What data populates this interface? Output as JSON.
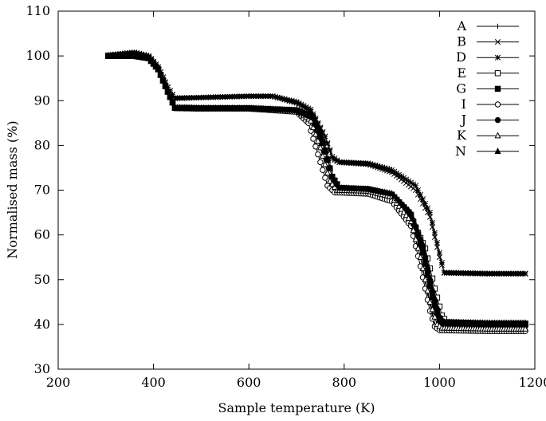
{
  "chart_data": {
    "type": "line",
    "title": "",
    "xlabel": "Sample temperature (K)",
    "ylabel": "Normalised mass (%)",
    "xlim": [
      200,
      1200
    ],
    "ylim": [
      30,
      110
    ],
    "xticks": [
      200,
      400,
      600,
      800,
      1000,
      1200
    ],
    "yticks": [
      30,
      40,
      50,
      60,
      70,
      80,
      90,
      100,
      110
    ],
    "grid": false,
    "legend_position": "top-right",
    "series": [
      {
        "name": "A",
        "marker": "plus",
        "points": [
          [
            305,
            100
          ],
          [
            360,
            100
          ],
          [
            390,
            99.5
          ],
          [
            410,
            97
          ],
          [
            430,
            92
          ],
          [
            445,
            88.4
          ],
          [
            500,
            88.3
          ],
          [
            600,
            88.3
          ],
          [
            700,
            87.8
          ],
          [
            730,
            86
          ],
          [
            750,
            80
          ],
          [
            770,
            72
          ],
          [
            785,
            70
          ],
          [
            850,
            69.8
          ],
          [
            900,
            68.5
          ],
          [
            940,
            63
          ],
          [
            960,
            55
          ],
          [
            975,
            47
          ],
          [
            990,
            40
          ],
          [
            1000,
            39
          ],
          [
            1100,
            38.8
          ],
          [
            1180,
            38.8
          ]
        ]
      },
      {
        "name": "B",
        "marker": "cross",
        "points": [
          [
            305,
            100
          ],
          [
            360,
            100.5
          ],
          [
            390,
            99.8
          ],
          [
            410,
            97.5
          ],
          [
            430,
            93
          ],
          [
            445,
            90.5
          ],
          [
            500,
            90.7
          ],
          [
            600,
            91
          ],
          [
            650,
            91
          ],
          [
            700,
            89.5
          ],
          [
            730,
            87.5
          ],
          [
            760,
            82
          ],
          [
            775,
            77
          ],
          [
            790,
            76.2
          ],
          [
            850,
            75.8
          ],
          [
            900,
            74
          ],
          [
            950,
            70
          ],
          [
            980,
            64
          ],
          [
            1000,
            55
          ],
          [
            1010,
            51.5
          ],
          [
            1100,
            51.3
          ],
          [
            1180,
            51.3
          ]
        ]
      },
      {
        "name": "D",
        "marker": "asterisk",
        "points": [
          [
            305,
            100.2
          ],
          [
            360,
            100.8
          ],
          [
            390,
            100
          ],
          [
            410,
            97.5
          ],
          [
            430,
            93
          ],
          [
            445,
            90.6
          ],
          [
            500,
            90.7
          ],
          [
            600,
            91
          ],
          [
            650,
            91
          ],
          [
            700,
            89.7
          ],
          [
            730,
            88
          ],
          [
            760,
            82
          ],
          [
            775,
            77.5
          ],
          [
            790,
            76.3
          ],
          [
            850,
            76
          ],
          [
            900,
            74.5
          ],
          [
            950,
            71
          ],
          [
            980,
            65
          ],
          [
            1000,
            56
          ],
          [
            1010,
            51.6
          ],
          [
            1100,
            51.4
          ],
          [
            1180,
            51.4
          ]
        ]
      },
      {
        "name": "E",
        "marker": "square-open",
        "points": [
          [
            305,
            100
          ],
          [
            360,
            100
          ],
          [
            390,
            99.5
          ],
          [
            410,
            97
          ],
          [
            430,
            92
          ],
          [
            445,
            88.4
          ],
          [
            500,
            88.3
          ],
          [
            600,
            88.3
          ],
          [
            700,
            87.8
          ],
          [
            735,
            86
          ],
          [
            755,
            80
          ],
          [
            775,
            72
          ],
          [
            790,
            70
          ],
          [
            850,
            69.8
          ],
          [
            900,
            68.7
          ],
          [
            940,
            64
          ],
          [
            970,
            57
          ],
          [
            990,
            48
          ],
          [
            1005,
            42
          ],
          [
            1015,
            40.5
          ],
          [
            1100,
            40.2
          ],
          [
            1180,
            40.2
          ]
        ]
      },
      {
        "name": "G",
        "marker": "square-filled",
        "points": [
          [
            305,
            100
          ],
          [
            360,
            100
          ],
          [
            390,
            99.5
          ],
          [
            410,
            97
          ],
          [
            430,
            92
          ],
          [
            445,
            88.4
          ],
          [
            500,
            88.3
          ],
          [
            600,
            88.3
          ],
          [
            700,
            87.8
          ],
          [
            735,
            86
          ],
          [
            755,
            80.5
          ],
          [
            775,
            73
          ],
          [
            790,
            70.5
          ],
          [
            850,
            70.2
          ],
          [
            900,
            69
          ],
          [
            940,
            64.5
          ],
          [
            965,
            57
          ],
          [
            985,
            47
          ],
          [
            1000,
            41
          ],
          [
            1010,
            40.3
          ],
          [
            1100,
            40.1
          ],
          [
            1180,
            40.1
          ]
        ]
      },
      {
        "name": "I",
        "marker": "circle-open",
        "points": [
          [
            305,
            100
          ],
          [
            360,
            100
          ],
          [
            390,
            99.5
          ],
          [
            410,
            97
          ],
          [
            430,
            92
          ],
          [
            445,
            88.3
          ],
          [
            500,
            88.2
          ],
          [
            600,
            88.2
          ],
          [
            700,
            87.5
          ],
          [
            725,
            85
          ],
          [
            745,
            78
          ],
          [
            765,
            71
          ],
          [
            780,
            69.5
          ],
          [
            850,
            69.2
          ],
          [
            900,
            67.5
          ],
          [
            940,
            62
          ],
          [
            960,
            53
          ],
          [
            980,
            43
          ],
          [
            990,
            39.5
          ],
          [
            1000,
            38.7
          ],
          [
            1100,
            38.5
          ],
          [
            1180,
            38.5
          ]
        ]
      },
      {
        "name": "J",
        "marker": "circle-filled",
        "points": [
          [
            305,
            100
          ],
          [
            360,
            100
          ],
          [
            390,
            99.5
          ],
          [
            410,
            97
          ],
          [
            430,
            92
          ],
          [
            445,
            88.4
          ],
          [
            500,
            88.3
          ],
          [
            600,
            88.3
          ],
          [
            700,
            87.9
          ],
          [
            735,
            86.5
          ],
          [
            755,
            81
          ],
          [
            775,
            73
          ],
          [
            790,
            70.5
          ],
          [
            850,
            70.3
          ],
          [
            900,
            69
          ],
          [
            940,
            64
          ],
          [
            965,
            56
          ],
          [
            985,
            46
          ],
          [
            1000,
            40.5
          ],
          [
            1010,
            39.8
          ],
          [
            1100,
            39.6
          ],
          [
            1180,
            39.6
          ]
        ]
      },
      {
        "name": "K",
        "marker": "triangle-open",
        "points": [
          [
            305,
            100
          ],
          [
            360,
            100
          ],
          [
            390,
            99.5
          ],
          [
            410,
            97
          ],
          [
            430,
            92
          ],
          [
            445,
            88.4
          ],
          [
            500,
            88.3
          ],
          [
            600,
            88.3
          ],
          [
            700,
            87.8
          ],
          [
            730,
            85.5
          ],
          [
            750,
            79.5
          ],
          [
            770,
            72
          ],
          [
            785,
            70
          ],
          [
            850,
            69.8
          ],
          [
            900,
            68.5
          ],
          [
            940,
            63
          ],
          [
            960,
            55
          ],
          [
            980,
            45
          ],
          [
            995,
            40
          ],
          [
            1005,
            39.2
          ],
          [
            1100,
            39
          ],
          [
            1180,
            39
          ]
        ]
      },
      {
        "name": "N",
        "marker": "triangle-filled",
        "points": [
          [
            305,
            100
          ],
          [
            360,
            100
          ],
          [
            390,
            99.5
          ],
          [
            410,
            97
          ],
          [
            430,
            92
          ],
          [
            445,
            88.4
          ],
          [
            500,
            88.3
          ],
          [
            600,
            88.3
          ],
          [
            700,
            87.8
          ],
          [
            735,
            86.2
          ],
          [
            755,
            80.5
          ],
          [
            775,
            73
          ],
          [
            790,
            70.5
          ],
          [
            850,
            70.2
          ],
          [
            900,
            69.2
          ],
          [
            940,
            65
          ],
          [
            965,
            58
          ],
          [
            985,
            48
          ],
          [
            1000,
            42
          ],
          [
            1010,
            40.5
          ],
          [
            1100,
            40.3
          ],
          [
            1180,
            40.3
          ]
        ]
      }
    ]
  }
}
